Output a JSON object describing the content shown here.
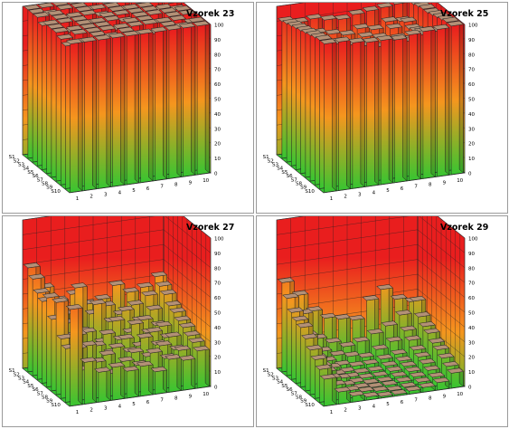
{
  "chart_data": [
    {
      "type": "bar3d",
      "title": "Vzorek 23",
      "x_categories": [
        "1",
        "2",
        "3",
        "4",
        "5",
        "6",
        "7",
        "8",
        "9",
        "10"
      ],
      "y_categories": [
        "S1",
        "S2",
        "S3",
        "S4",
        "S5",
        "S6",
        "S7",
        "S8",
        "S9",
        "S10"
      ],
      "z_ticks": [
        0,
        10,
        20,
        30,
        40,
        50,
        60,
        70,
        80,
        90,
        100
      ],
      "z_range": [
        0,
        100
      ],
      "colormap": [
        "#37c531",
        "#f5961e",
        "#e91e1e"
      ],
      "values": [
        [
          100,
          100,
          100,
          100,
          100,
          100,
          100,
          100,
          100,
          100
        ],
        [
          100,
          98,
          100,
          100,
          97,
          100,
          100,
          98,
          100,
          100
        ],
        [
          100,
          100,
          96,
          100,
          100,
          100,
          97,
          100,
          100,
          100
        ],
        [
          97,
          100,
          100,
          100,
          98,
          100,
          100,
          100,
          96,
          100
        ],
        [
          100,
          100,
          100,
          97,
          100,
          100,
          100,
          100,
          100,
          98
        ],
        [
          100,
          96,
          100,
          100,
          100,
          98,
          100,
          100,
          100,
          100
        ],
        [
          100,
          100,
          100,
          100,
          96,
          100,
          100,
          97,
          100,
          100
        ],
        [
          98,
          100,
          100,
          100,
          100,
          100,
          100,
          100,
          100,
          97
        ],
        [
          96,
          97,
          100,
          98,
          100,
          97,
          96,
          100,
          98,
          100
        ],
        [
          100,
          100,
          100,
          100,
          100,
          100,
          100,
          100,
          100,
          100
        ]
      ]
    },
    {
      "type": "bar3d",
      "title": "Vzorek 25",
      "x_categories": [
        "1",
        "2",
        "3",
        "4",
        "5",
        "6",
        "7",
        "8",
        "9",
        "10"
      ],
      "y_categories": [
        "S1",
        "S2",
        "S3",
        "S4",
        "S5",
        "S6",
        "S7",
        "S8",
        "S9",
        "S10"
      ],
      "z_ticks": [
        0,
        10,
        20,
        30,
        40,
        50,
        60,
        70,
        80,
        90,
        100
      ],
      "z_range": [
        0,
        100
      ],
      "colormap": [
        "#37c531",
        "#f5961e",
        "#e91e1e"
      ],
      "values": [
        [
          92,
          90,
          91,
          89,
          88,
          90,
          91,
          92,
          93,
          94
        ],
        [
          93,
          86,
          84,
          82,
          80,
          83,
          81,
          85,
          84,
          94
        ],
        [
          94,
          85,
          82,
          79,
          76,
          80,
          78,
          83,
          86,
          95
        ],
        [
          95,
          84,
          80,
          78,
          72,
          75,
          74,
          79,
          84,
          96
        ],
        [
          96,
          86,
          82,
          77,
          74,
          70,
          75,
          80,
          85,
          96
        ],
        [
          97,
          88,
          79,
          82,
          76,
          73,
          79,
          81,
          87,
          97
        ],
        [
          98,
          91,
          86,
          80,
          84,
          79,
          82,
          86,
          90,
          98
        ],
        [
          99,
          93,
          89,
          84,
          86,
          85,
          87,
          89,
          92,
          99
        ],
        [
          100,
          96,
          94,
          92,
          90,
          93,
          91,
          94,
          95,
          100
        ],
        [
          100,
          100,
          98,
          97,
          97,
          96,
          98,
          99,
          99,
          100
        ]
      ]
    },
    {
      "type": "bar3d",
      "title": "Vzorek 27",
      "x_categories": [
        "1",
        "2",
        "3",
        "4",
        "5",
        "6",
        "7",
        "8",
        "9",
        "10"
      ],
      "y_categories": [
        "S1",
        "S2",
        "S3",
        "S4",
        "S5",
        "S6",
        "S7",
        "S8",
        "S9",
        "S10"
      ],
      "z_ticks": [
        0,
        10,
        20,
        30,
        40,
        50,
        60,
        70,
        80,
        90,
        100
      ],
      "z_range": [
        0,
        100
      ],
      "colormap": [
        "#37c531",
        "#f5961e",
        "#e91e1e"
      ],
      "values": [
        [
          70,
          55,
          45,
          48,
          40,
          42,
          50,
          44,
          46,
          52
        ],
        [
          65,
          42,
          38,
          55,
          36,
          40,
          33,
          38,
          43,
          48
        ],
        [
          58,
          30,
          35,
          28,
          45,
          32,
          38,
          30,
          36,
          45
        ],
        [
          55,
          38,
          25,
          30,
          22,
          35,
          26,
          33,
          28,
          40
        ],
        [
          60,
          28,
          32,
          22,
          30,
          25,
          34,
          27,
          30,
          38
        ],
        [
          48,
          35,
          22,
          26,
          20,
          28,
          22,
          30,
          25,
          35
        ],
        [
          62,
          25,
          30,
          18,
          26,
          22,
          30,
          24,
          28,
          33
        ],
        [
          40,
          32,
          18,
          25,
          15,
          24,
          20,
          26,
          22,
          30
        ],
        [
          36,
          20,
          24,
          15,
          22,
          18,
          25,
          20,
          24,
          28
        ],
        [
          65,
          28,
          20,
          22,
          18,
          20,
          15,
          22,
          20,
          25
        ]
      ]
    },
    {
      "type": "bar3d",
      "title": "Vzorek 29",
      "x_categories": [
        "1",
        "2",
        "3",
        "4",
        "5",
        "6",
        "7",
        "8",
        "9",
        "10"
      ],
      "y_categories": [
        "S1",
        "S2",
        "S3",
        "S4",
        "S5",
        "S6",
        "S7",
        "S8",
        "S9",
        "S10"
      ],
      "z_ticks": [
        0,
        10,
        20,
        30,
        40,
        50,
        60,
        70,
        80,
        90,
        100
      ],
      "z_range": [
        0,
        100
      ],
      "colormap": [
        "#37c531",
        "#f5961e",
        "#e91e1e"
      ],
      "values": [
        [
          60,
          50,
          38,
          32,
          30,
          28,
          40,
          46,
          38,
          35
        ],
        [
          52,
          40,
          22,
          18,
          14,
          16,
          20,
          24,
          30,
          38
        ],
        [
          45,
          28,
          16,
          12,
          10,
          8,
          12,
          16,
          22,
          30
        ],
        [
          42,
          20,
          12,
          8,
          6,
          6,
          8,
          10,
          18,
          26
        ],
        [
          40,
          18,
          10,
          6,
          4,
          4,
          6,
          8,
          14,
          24
        ],
        [
          35,
          15,
          8,
          5,
          3,
          3,
          5,
          7,
          12,
          20
        ],
        [
          30,
          14,
          8,
          4,
          2,
          2,
          4,
          6,
          10,
          18
        ],
        [
          26,
          12,
          6,
          3,
          2,
          2,
          3,
          5,
          8,
          15
        ],
        [
          22,
          10,
          5,
          3,
          2,
          1,
          2,
          4,
          6,
          12
        ],
        [
          18,
          8,
          4,
          2,
          1,
          1,
          2,
          3,
          5,
          10
        ]
      ]
    }
  ]
}
